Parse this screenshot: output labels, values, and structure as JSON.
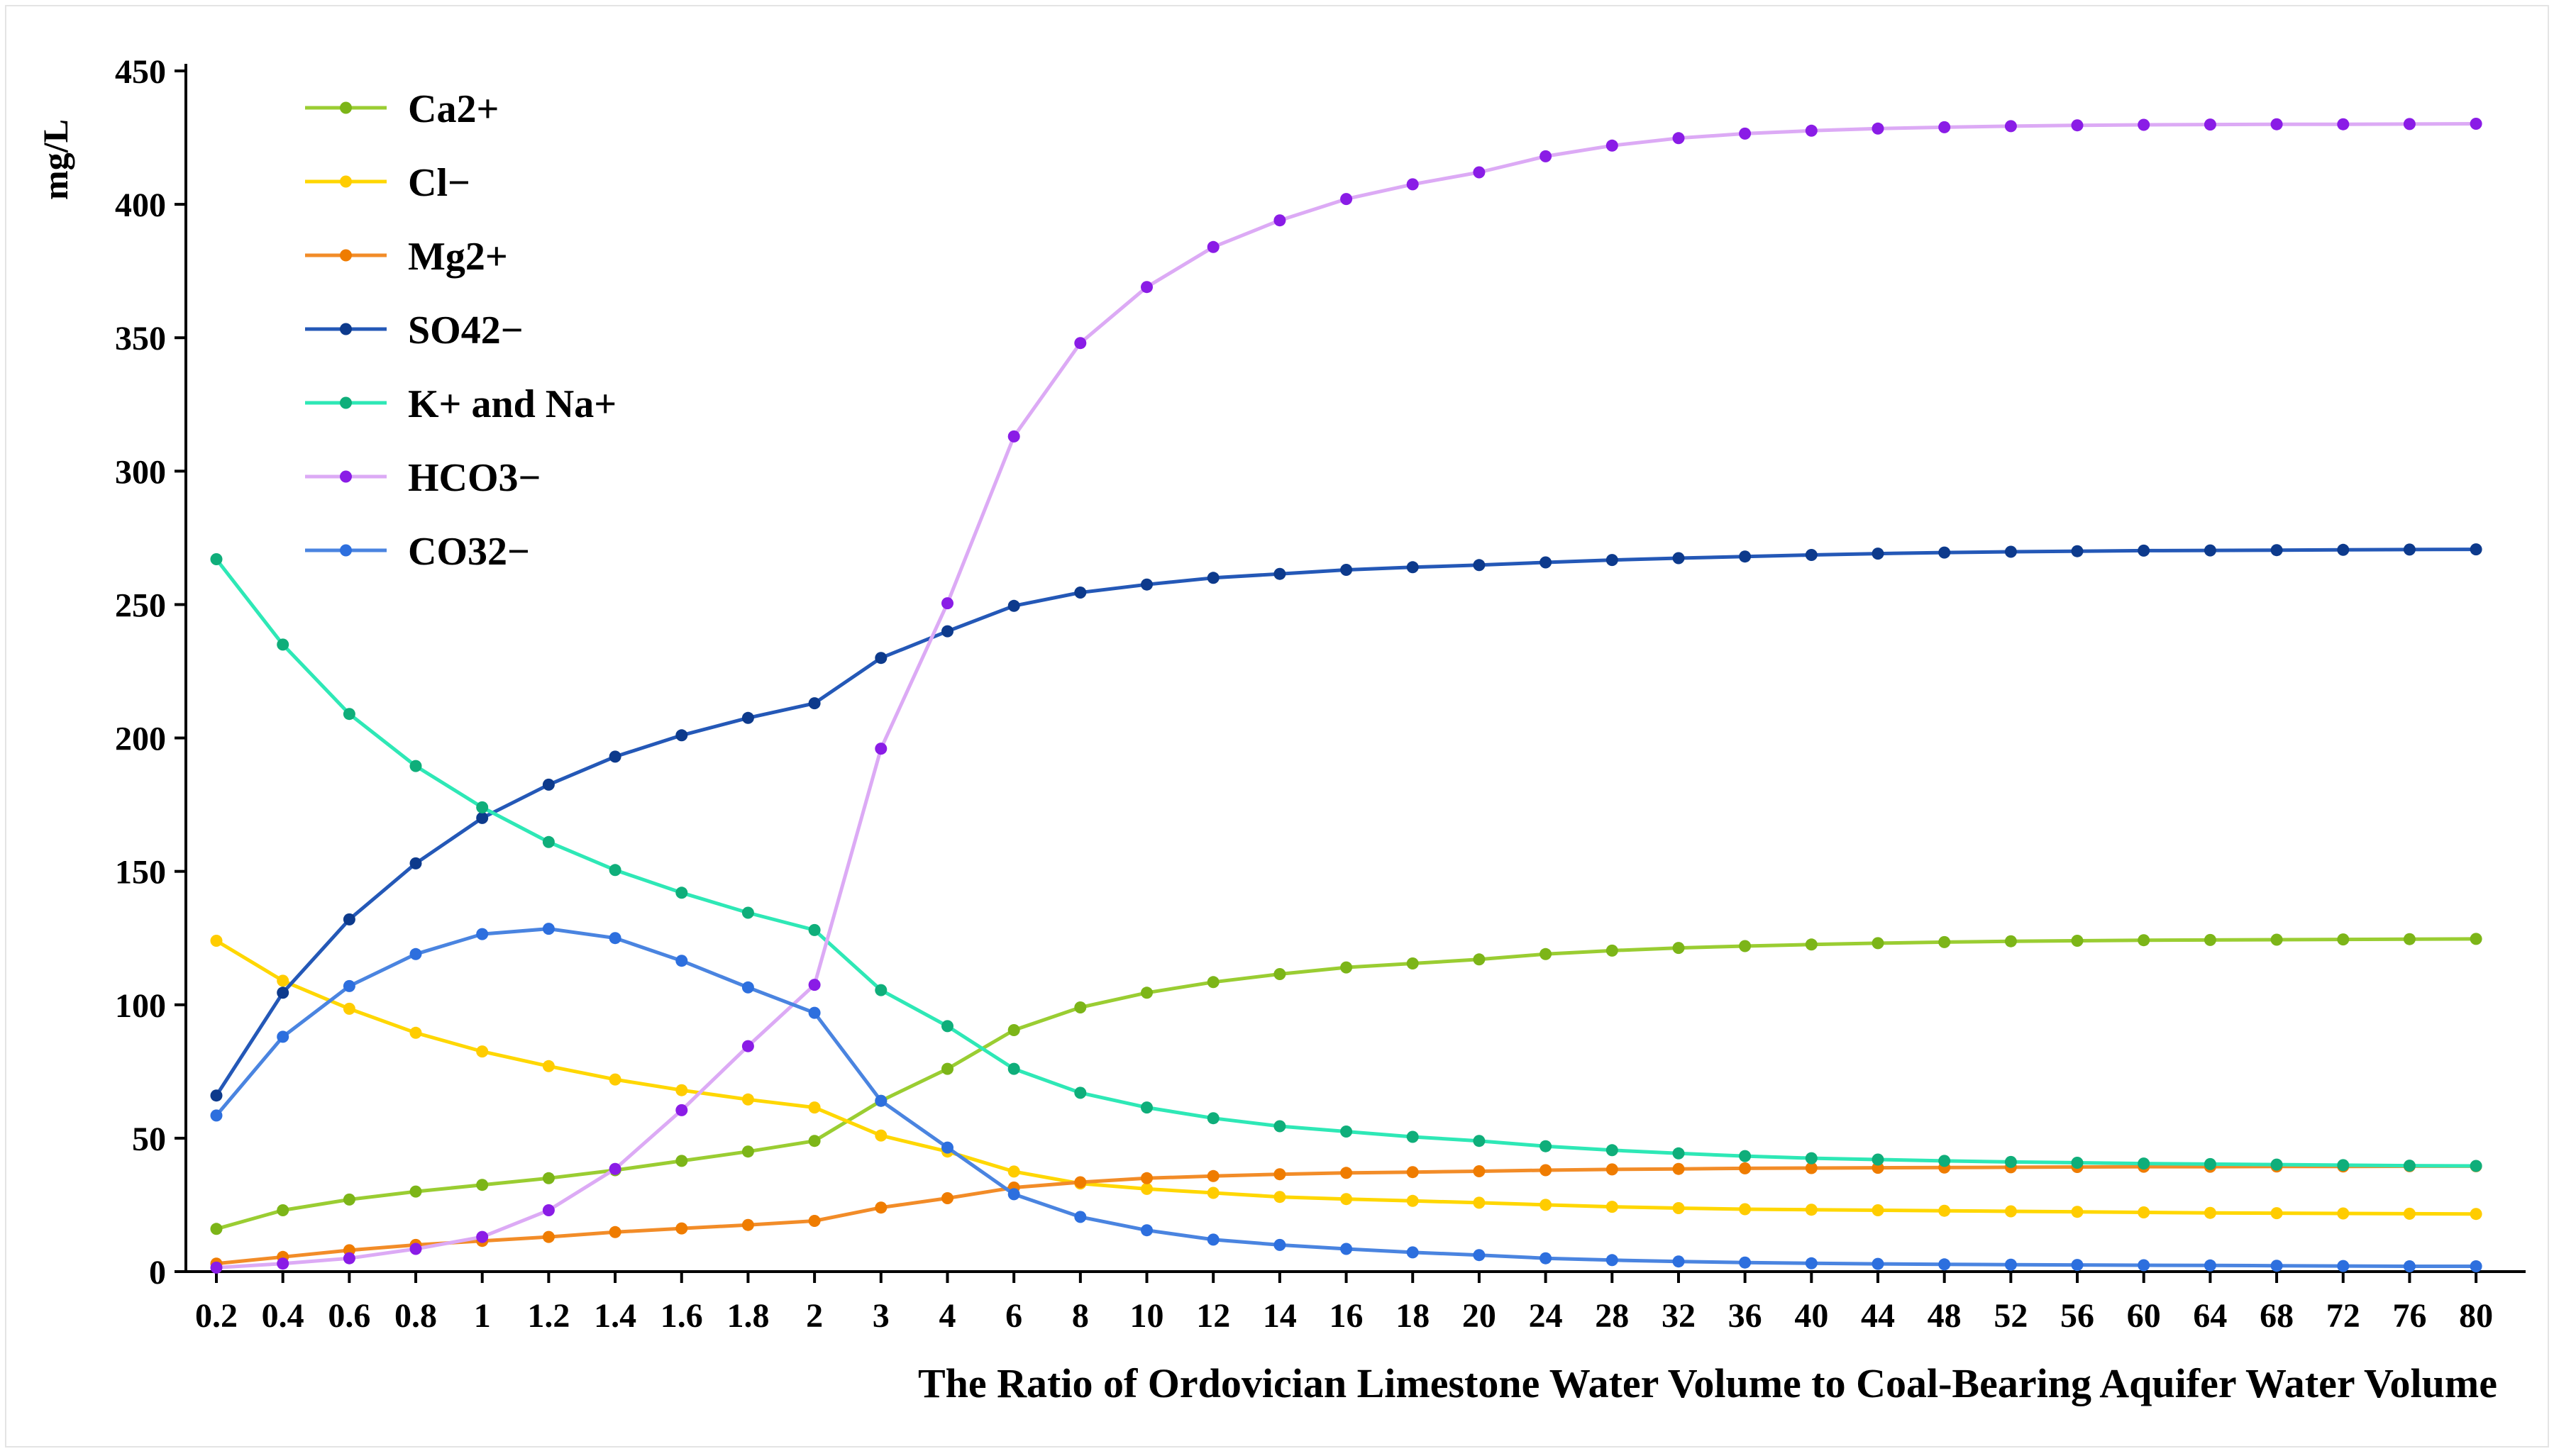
{
  "chart_data": {
    "type": "line",
    "title": "",
    "ylabel": "mg/L",
    "xlabel": "The Ratio of Ordovician Limestone Water Volume to Coal-Bearing Aquifer Water Volume",
    "categories": [
      "0.2",
      "0.4",
      "0.6",
      "0.8",
      "1",
      "1.2",
      "1.4",
      "1.6",
      "1.8",
      "2",
      "3",
      "4",
      "6",
      "8",
      "10",
      "12",
      "14",
      "16",
      "18",
      "20",
      "24",
      "28",
      "32",
      "36",
      "40",
      "44",
      "48",
      "52",
      "56",
      "60",
      "64",
      "68",
      "72",
      "76",
      "80"
    ],
    "ylim": [
      0,
      450
    ],
    "yticks": [
      "0",
      "50",
      "100",
      "150",
      "200",
      "250",
      "300",
      "350",
      "400",
      "450"
    ],
    "grid": false,
    "legend_position": "top-left",
    "series": [
      {
        "name": "Ca2+",
        "line_color": "#9acd32",
        "marker_color": "#7cb518",
        "values": [
          16,
          23,
          27,
          30,
          32.5,
          35,
          38,
          41.5,
          45,
          49,
          64,
          76,
          90.5,
          99,
          104.5,
          108.5,
          111.5,
          114,
          115.5,
          117,
          119,
          120.3,
          121.3,
          122,
          122.6,
          123.1,
          123.5,
          123.8,
          124,
          124.2,
          124.3,
          124.4,
          124.5,
          124.6,
          124.7
        ]
      },
      {
        "name": "Cl−",
        "line_color": "#ffd700",
        "marker_color": "#ffcc00",
        "values": [
          124,
          109,
          98.5,
          89.5,
          82.5,
          77,
          72,
          68,
          64.5,
          61.5,
          51,
          45,
          37.5,
          33,
          31,
          29.5,
          28,
          27.2,
          26.5,
          25.8,
          25,
          24.3,
          23.8,
          23.4,
          23.2,
          23,
          22.8,
          22.6,
          22.4,
          22.2,
          22,
          21.9,
          21.8,
          21.7,
          21.6
        ]
      },
      {
        "name": "Mg2+",
        "line_color": "#f28c28",
        "marker_color": "#ef7c00",
        "values": [
          3,
          5.5,
          8,
          10,
          11.5,
          13,
          14.8,
          16.2,
          17.5,
          19,
          24,
          27.5,
          31.5,
          33.5,
          35,
          35.8,
          36.5,
          37,
          37.3,
          37.6,
          38,
          38.3,
          38.5,
          38.7,
          38.8,
          38.9,
          39,
          39.1,
          39.2,
          39.3,
          39.3,
          39.4,
          39.4,
          39.5,
          39.5
        ]
      },
      {
        "name": "SO42−",
        "line_color": "#2458b7",
        "marker_color": "#0d3a8c",
        "values": [
          66,
          104.5,
          132,
          153,
          170,
          182.5,
          193,
          201,
          207.5,
          213,
          230,
          240,
          249.5,
          254.5,
          257.5,
          260,
          261.5,
          263,
          264,
          264.8,
          265.8,
          266.7,
          267.4,
          268,
          268.6,
          269.1,
          269.5,
          269.8,
          270,
          270.2,
          270.3,
          270.4,
          270.5,
          270.6,
          270.7
        ]
      },
      {
        "name": "K+ and Na+",
        "line_color": "#2ee8b6",
        "marker_color": "#0fae7a",
        "values": [
          267,
          235,
          209,
          189.5,
          174,
          161,
          150.5,
          142,
          134.5,
          128,
          105.5,
          92,
          76,
          67,
          61.5,
          57.5,
          54.5,
          52.5,
          50.5,
          49,
          47,
          45.5,
          44.3,
          43.3,
          42.5,
          42,
          41.5,
          41.1,
          40.8,
          40.5,
          40.3,
          40.1,
          39.9,
          39.7,
          39.6
        ]
      },
      {
        "name": "HCO3−",
        "line_color": "#dcaaf5",
        "marker_color": "#8a1ce6",
        "values": [
          1.5,
          3,
          5,
          8.5,
          13,
          23,
          38.5,
          60.5,
          84.5,
          107.5,
          196,
          250.5,
          313,
          348,
          369,
          384,
          394,
          402,
          407.5,
          412,
          418,
          422,
          424.8,
          426.5,
          427.6,
          428.4,
          428.9,
          429.3,
          429.6,
          429.8,
          429.9,
          430,
          430,
          430.1,
          430.2
        ]
      },
      {
        "name": "CO32−",
        "line_color": "#4a84e0",
        "marker_color": "#2d6fde",
        "values": [
          58.5,
          88,
          107,
          119,
          126.5,
          128.5,
          125,
          116.5,
          106.5,
          97,
          64,
          46.5,
          29,
          20.5,
          15.5,
          12,
          10,
          8.5,
          7.2,
          6.2,
          5,
          4.3,
          3.8,
          3.4,
          3.1,
          2.9,
          2.7,
          2.6,
          2.5,
          2.4,
          2.3,
          2.2,
          2.1,
          2,
          2
        ]
      }
    ]
  }
}
